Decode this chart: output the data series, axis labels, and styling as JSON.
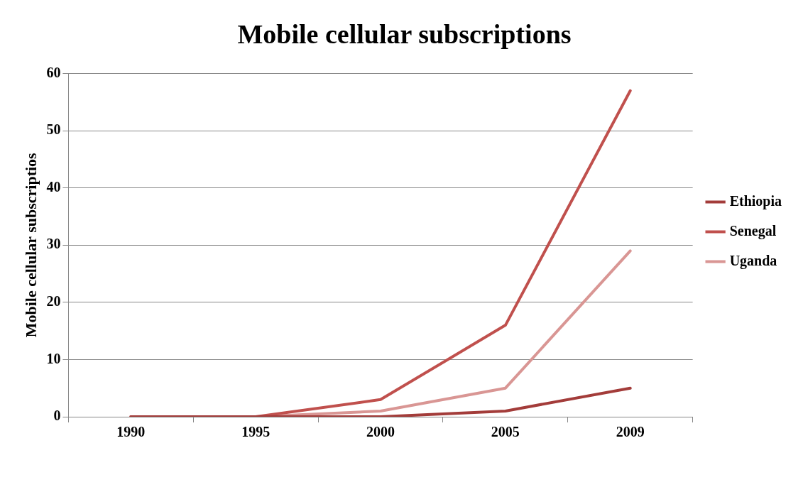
{
  "chart_data": {
    "type": "line",
    "title": "Mobile cellular subscriptions",
    "ylabel": "Mobile cellular subscriptios",
    "categories": [
      "1990",
      "1995",
      "2000",
      "2005",
      "2009"
    ],
    "series": [
      {
        "name": "Ethiopia",
        "color": "#a33c3a",
        "values": [
          0,
          0,
          0,
          1,
          5
        ]
      },
      {
        "name": "Senegal",
        "color": "#c0504d",
        "values": [
          0,
          0,
          3,
          16,
          57
        ]
      },
      {
        "name": "Uganda",
        "color": "#d99694",
        "values": [
          0,
          0,
          1,
          5,
          29
        ]
      }
    ],
    "ylim": [
      0,
      60
    ],
    "yticks": [
      0,
      10,
      20,
      30,
      40,
      50,
      60
    ],
    "grid": "y",
    "legend": "right",
    "marker": "none",
    "line_style": "solid"
  }
}
